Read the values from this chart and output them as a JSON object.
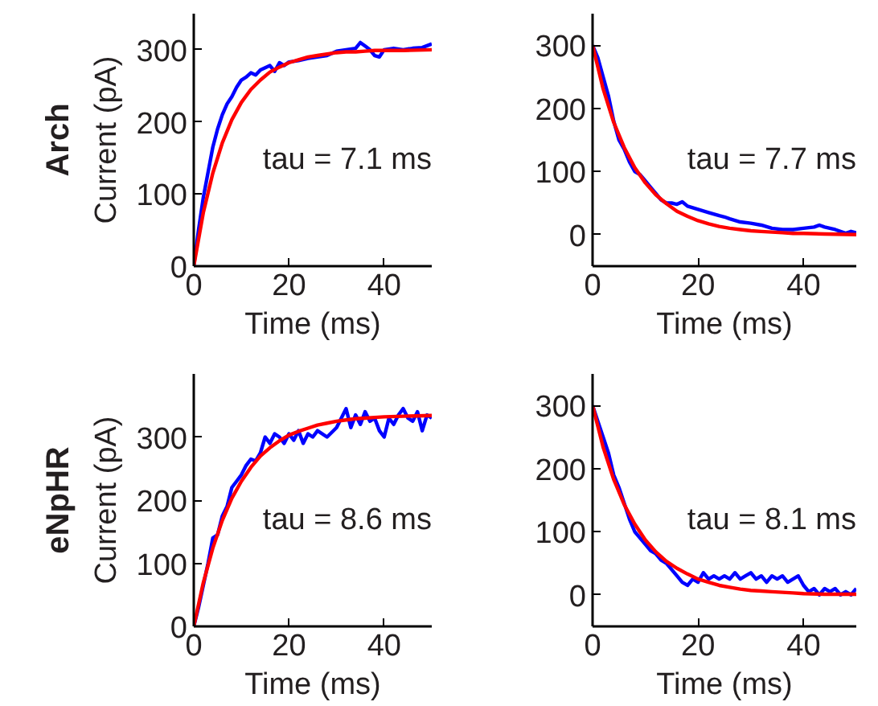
{
  "chart_data": [
    {
      "type": "line",
      "xlabel": "Time (ms)",
      "ylabel": "Current (pA)",
      "xlim": [
        0,
        50
      ],
      "ylim": [
        0,
        350
      ],
      "xticks": [
        0,
        20,
        40
      ],
      "yticks": [
        0,
        100,
        200,
        300
      ],
      "grid": false,
      "annotations": [
        "tau = 7.1 ms",
        "Arch"
      ],
      "series": [
        {
          "color": "#0000ff",
          "x": [
            0,
            1,
            2,
            3,
            4,
            5,
            6,
            7,
            8,
            9,
            10,
            11,
            12,
            13,
            14,
            15,
            16,
            17,
            18,
            19,
            20,
            22,
            24,
            26,
            28,
            30,
            32,
            34,
            35,
            36,
            37,
            38,
            39,
            40,
            42,
            44,
            46,
            48,
            50
          ],
          "values": [
            0,
            50,
            95,
            130,
            165,
            190,
            210,
            225,
            235,
            248,
            258,
            262,
            268,
            265,
            272,
            275,
            278,
            270,
            282,
            278,
            283,
            285,
            288,
            290,
            292,
            298,
            300,
            302,
            310,
            305,
            300,
            292,
            290,
            300,
            302,
            300,
            302,
            303,
            308
          ]
        },
        {
          "color": "#ff0000",
          "x": [
            0,
            2,
            4,
            6,
            8,
            10,
            12,
            14,
            16,
            18,
            20,
            22,
            24,
            26,
            28,
            30,
            32,
            34,
            36,
            38,
            40,
            44,
            50
          ],
          "values": [
            0,
            74,
            129,
            171,
            203,
            227,
            245,
            258,
            269,
            276,
            282,
            286,
            290,
            292,
            294,
            296,
            297,
            297,
            298,
            299,
            299,
            299,
            300
          ]
        }
      ]
    },
    {
      "type": "line",
      "xlabel": "Time (ms)",
      "xlim": [
        0,
        50
      ],
      "ylim": [
        -50,
        350
      ],
      "xticks": [
        0,
        20,
        40
      ],
      "yticks": [
        0,
        100,
        200,
        300
      ],
      "grid": false,
      "annotations": [
        "tau = 7.7 ms"
      ],
      "series": [
        {
          "color": "#0000ff",
          "x": [
            0,
            1,
            2,
            3,
            4,
            5,
            6,
            7,
            8,
            9,
            10,
            11,
            12,
            13,
            14,
            15,
            16,
            17,
            18,
            20,
            22,
            24,
            25,
            26,
            28,
            30,
            32,
            34,
            36,
            38,
            40,
            42,
            43,
            44,
            46,
            48,
            49,
            50
          ],
          "values": [
            300,
            280,
            250,
            220,
            180,
            150,
            135,
            115,
            100,
            95,
            85,
            75,
            65,
            55,
            50,
            50,
            48,
            52,
            45,
            40,
            35,
            30,
            28,
            25,
            20,
            18,
            15,
            10,
            8,
            8,
            10,
            12,
            15,
            12,
            8,
            2,
            5,
            3
          ]
        },
        {
          "color": "#ff0000",
          "x": [
            0,
            2,
            4,
            6,
            8,
            10,
            12,
            14,
            16,
            18,
            20,
            22,
            24,
            26,
            28,
            30,
            32,
            34,
            36,
            38,
            40,
            44,
            50
          ],
          "values": [
            300,
            231,
            178,
            138,
            106,
            82,
            63,
            49,
            37,
            29,
            22,
            17,
            13,
            10,
            8,
            6,
            5,
            4,
            3,
            2,
            2,
            1,
            0
          ]
        }
      ]
    },
    {
      "type": "line",
      "xlabel": "Time (ms)",
      "ylabel": "Current (pA)",
      "xlim": [
        0,
        50
      ],
      "ylim": [
        0,
        400
      ],
      "xticks": [
        0,
        20,
        40
      ],
      "yticks": [
        0,
        100,
        200,
        300
      ],
      "grid": false,
      "annotations": [
        "tau = 8.6 ms",
        "eNpHR"
      ],
      "series": [
        {
          "color": "#0000ff",
          "x": [
            0,
            1,
            2,
            3,
            4,
            5,
            6,
            7,
            8,
            9,
            10,
            11,
            12,
            13,
            14,
            15,
            16,
            17,
            18,
            19,
            20,
            21,
            22,
            23,
            24,
            25,
            26,
            28,
            30,
            31,
            32,
            33,
            34,
            35,
            36,
            37,
            38,
            39,
            40,
            41,
            42,
            43,
            44,
            45,
            46,
            47,
            48,
            49,
            50
          ],
          "values": [
            0,
            30,
            65,
            100,
            140,
            145,
            175,
            190,
            220,
            230,
            240,
            255,
            265,
            262,
            275,
            300,
            290,
            305,
            300,
            290,
            305,
            295,
            310,
            290,
            305,
            300,
            310,
            300,
            315,
            330,
            345,
            315,
            335,
            320,
            340,
            325,
            330,
            310,
            300,
            330,
            320,
            335,
            345,
            330,
            325,
            340,
            310,
            335,
            330
          ]
        },
        {
          "color": "#ff0000",
          "x": [
            0,
            2,
            4,
            6,
            8,
            10,
            12,
            14,
            16,
            18,
            20,
            22,
            24,
            26,
            28,
            30,
            32,
            34,
            36,
            38,
            40,
            44,
            50
          ],
          "values": [
            0,
            69,
            124,
            168,
            203,
            230,
            252,
            270,
            283,
            294,
            303,
            309,
            314,
            319,
            322,
            325,
            327,
            329,
            330,
            331,
            332,
            333,
            334
          ]
        }
      ]
    },
    {
      "type": "line",
      "xlabel": "Time (ms)",
      "xlim": [
        0,
        50
      ],
      "ylim": [
        -50,
        350
      ],
      "xticks": [
        0,
        20,
        40
      ],
      "yticks": [
        0,
        100,
        200,
        300
      ],
      "grid": false,
      "annotations": [
        "tau = 8.1 ms"
      ],
      "series": [
        {
          "color": "#0000ff",
          "x": [
            0,
            1,
            2,
            3,
            4,
            5,
            6,
            7,
            8,
            9,
            10,
            11,
            12,
            13,
            14,
            15,
            16,
            17,
            18,
            19,
            20,
            21,
            22,
            23,
            24,
            25,
            26,
            27,
            28,
            29,
            30,
            31,
            32,
            33,
            34,
            35,
            36,
            37,
            38,
            39,
            40,
            41,
            42,
            43,
            44,
            45,
            46,
            47,
            48,
            49,
            50
          ],
          "values": [
            300,
            275,
            250,
            225,
            190,
            170,
            145,
            120,
            100,
            90,
            80,
            70,
            65,
            55,
            50,
            40,
            30,
            20,
            15,
            25,
            20,
            35,
            25,
            30,
            25,
            30,
            25,
            35,
            25,
            30,
            35,
            25,
            30,
            20,
            30,
            25,
            30,
            20,
            25,
            30,
            15,
            5,
            10,
            0,
            10,
            5,
            10,
            0,
            5,
            0,
            10
          ]
        },
        {
          "color": "#ff0000",
          "x": [
            0,
            2,
            4,
            6,
            8,
            10,
            12,
            14,
            16,
            18,
            20,
            22,
            24,
            26,
            28,
            30,
            32,
            34,
            36,
            38,
            40,
            44,
            50
          ],
          "values": [
            300,
            234,
            183,
            143,
            112,
            87,
            68,
            53,
            42,
            33,
            25,
            20,
            15,
            12,
            9,
            7,
            6,
            5,
            4,
            3,
            2,
            1,
            1
          ]
        }
      ]
    }
  ]
}
